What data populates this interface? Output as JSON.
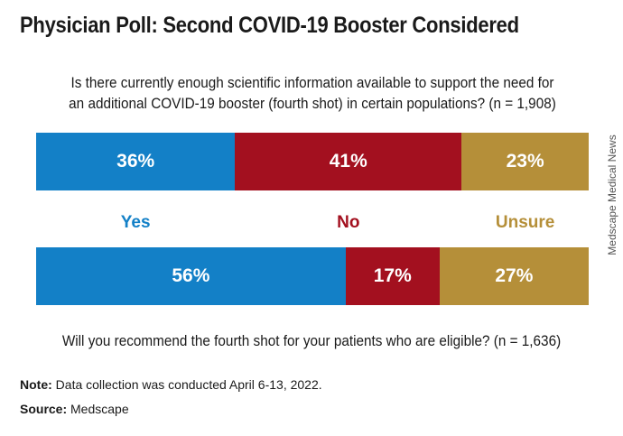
{
  "title": "Physician Poll: Second COVID-19 Booster Considered",
  "question1": "Is there currently enough scientific information available to support the need for an additional COVID-19 booster (fourth shot) in certain populations? (n = 1,908)",
  "question2": "Will you recommend the fourth shot for your patients who are eligible? (n = 1,636)",
  "note_label": "Note:",
  "note_text": " Data collection was conducted April 6-13, 2022.",
  "source_label": "Source:",
  "source_text": " Medscape",
  "credit": "Medscape Medical News",
  "colors": {
    "Yes": "#1380c7",
    "No": "#a3101f",
    "Unsure": "#b58f39"
  },
  "chart_data": {
    "type": "bar",
    "stacked": true,
    "orientation": "horizontal",
    "categories": [
      "Yes",
      "No",
      "Unsure"
    ],
    "series": [
      {
        "values": [
          36,
          41,
          23
        ],
        "labels": [
          "36%",
          "41%",
          "23%"
        ]
      },
      {
        "values": [
          56,
          17,
          27
        ],
        "labels": [
          "56%",
          "17%",
          "27%"
        ]
      }
    ]
  }
}
